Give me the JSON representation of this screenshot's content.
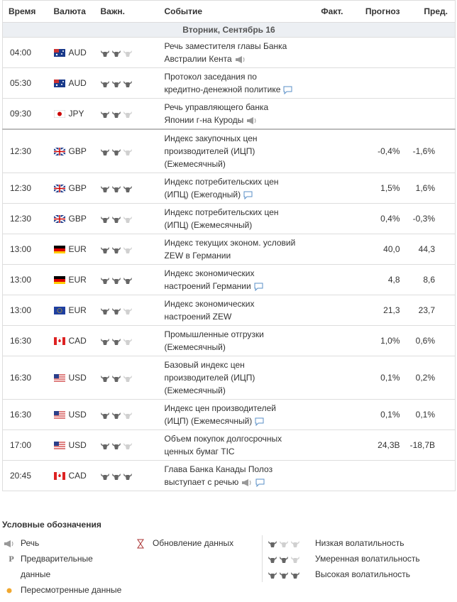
{
  "header": {
    "time": "Время",
    "currency": "Валюта",
    "importance": "Важн.",
    "event": "Событие",
    "actual": "Факт.",
    "forecast": "Прогноз",
    "previous": "Пред."
  },
  "date": "Вторник, Сентябрь 16",
  "rows": [
    {
      "time": "04:00",
      "currency": "AUD",
      "flag": "au",
      "importance": 2,
      "event": "Речь заместителя главы Банка Австралии Кента",
      "icons": [
        "speech"
      ]
    },
    {
      "time": "05:30",
      "currency": "AUD",
      "flag": "au",
      "importance": 3,
      "event": "Протокол заседания по кредитно-денежной политике",
      "icons": [
        "comment"
      ]
    },
    {
      "time": "09:30",
      "currency": "JPY",
      "flag": "jp",
      "importance": 2,
      "event": "Речь управляющего банка Японии г-на Куроды",
      "icons": [
        "speech"
      ]
    },
    {
      "time": "12:30",
      "currency": "GBP",
      "flag": "gb",
      "importance": 2,
      "event": "Индекс закупочных цен производителей (ИЦП) (Ежемесячный)",
      "forecast": "-0,4%",
      "previous": "-1,6%"
    },
    {
      "time": "12:30",
      "currency": "GBP",
      "flag": "gb",
      "importance": 3,
      "event": "Индекс потребительских цен (ИПЦ) (Ежегодный)",
      "icons": [
        "comment"
      ],
      "forecast": "1,5%",
      "previous": "1,6%"
    },
    {
      "time": "12:30",
      "currency": "GBP",
      "flag": "gb",
      "importance": 2,
      "event": "Индекс потребительских цен (ИПЦ) (Ежемесячный)",
      "forecast": "0,4%",
      "previous": "-0,3%"
    },
    {
      "time": "13:00",
      "currency": "EUR",
      "flag": "de",
      "importance": 2,
      "event": "Индекс текущих эконом. условий ZEW в Германии",
      "forecast": "40,0",
      "previous": "44,3"
    },
    {
      "time": "13:00",
      "currency": "EUR",
      "flag": "de",
      "importance": 3,
      "event": "Индекс экономических настроений Германии",
      "icons": [
        "comment"
      ],
      "forecast": "4,8",
      "previous": "8,6"
    },
    {
      "time": "13:00",
      "currency": "EUR",
      "flag": "eu",
      "importance": 2,
      "event": "Индекс экономических настроений ZEW",
      "forecast": "21,3",
      "previous": "23,7"
    },
    {
      "time": "16:30",
      "currency": "CAD",
      "flag": "ca",
      "importance": 2,
      "event": "Промышленные отгрузки (Ежемесячный)",
      "forecast": "1,0%",
      "previous": "0,6%"
    },
    {
      "time": "16:30",
      "currency": "USD",
      "flag": "us",
      "importance": 2,
      "event": "Базовый индекс цен производителей (ИЦП) (Ежемесячный)",
      "forecast": "0,1%",
      "previous": "0,2%"
    },
    {
      "time": "16:30",
      "currency": "USD",
      "flag": "us",
      "importance": 2,
      "event": "Индекс цен производителей (ИЦП) (Ежемесячный)",
      "icons": [
        "comment"
      ],
      "forecast": "0,1%",
      "previous": "0,1%"
    },
    {
      "time": "17:00",
      "currency": "USD",
      "flag": "us",
      "importance": 2,
      "event": "Объем покупок долгосрочных ценных бумаг TIC",
      "forecast": "24,3B",
      "previous": "-18,7B"
    },
    {
      "time": "20:45",
      "currency": "CAD",
      "flag": "ca",
      "importance": 3,
      "event": "Глава Банка Канады Полоз выступает с речью",
      "icons": [
        "speech",
        "comment"
      ]
    }
  ],
  "legend": {
    "title": "Условные обозначения",
    "speech": "Речь",
    "preliminary_mark": "P",
    "preliminary": "Предварительные данные",
    "revised": "Пересмотренные данные",
    "update": "Обновление данных",
    "volatility": [
      {
        "label": "Низкая волатильность",
        "level": 1
      },
      {
        "label": "Умеренная волатильность",
        "level": 2
      },
      {
        "label": "Высокая волатильность",
        "level": 3
      }
    ]
  }
}
